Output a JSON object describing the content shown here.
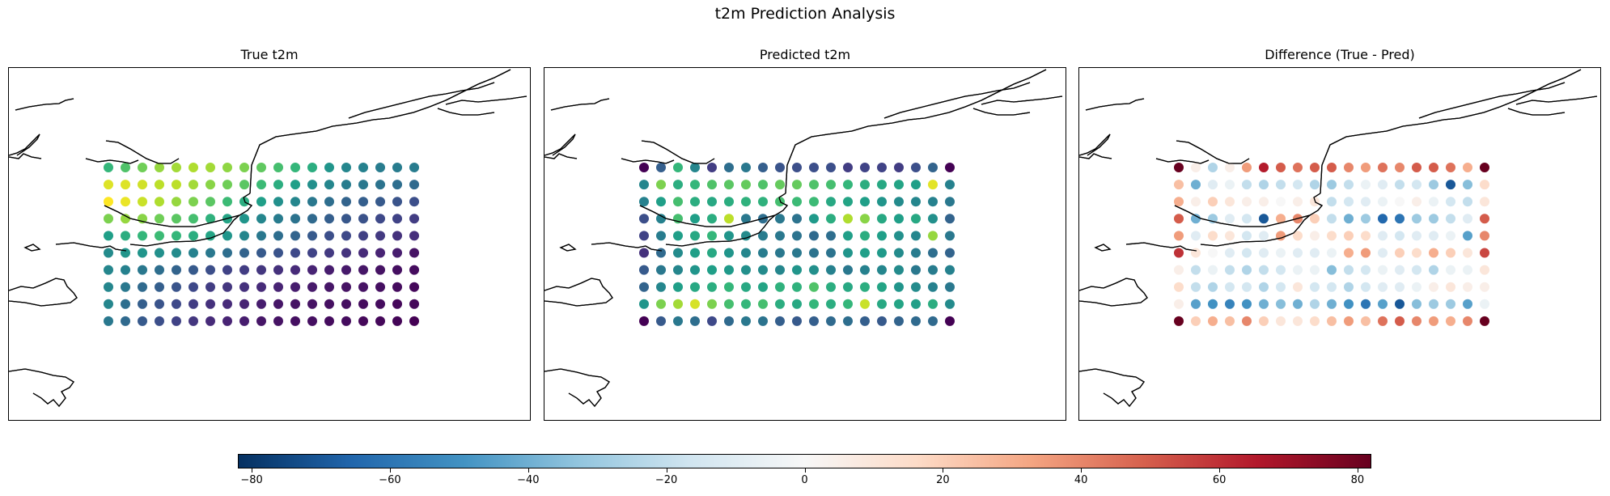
{
  "figure": {
    "suptitle": "t2m Prediction Analysis"
  },
  "chart_data": [
    {
      "type": "scatter",
      "title": "True t2m",
      "colormap": "viridis",
      "grid_columns": 19,
      "grid_rows": 10,
      "values": [
        [
          0.66,
          0.72,
          0.78,
          0.84,
          0.86,
          0.88,
          0.86,
          0.83,
          0.8,
          0.75,
          0.7,
          0.66,
          0.62,
          0.52,
          0.46,
          0.44,
          0.42,
          0.42,
          0.42
        ],
        [
          0.95,
          0.95,
          0.93,
          0.9,
          0.9,
          0.86,
          0.82,
          0.78,
          0.74,
          0.68,
          0.62,
          0.56,
          0.5,
          0.46,
          0.42,
          0.4,
          0.38,
          0.36,
          0.34
        ],
        [
          1.0,
          0.97,
          0.92,
          0.88,
          0.84,
          0.8,
          0.74,
          0.68,
          0.62,
          0.56,
          0.5,
          0.46,
          0.4,
          0.36,
          0.32,
          0.3,
          0.28,
          0.26,
          0.24
        ],
        [
          0.8,
          0.84,
          0.82,
          0.78,
          0.74,
          0.7,
          0.64,
          0.58,
          0.52,
          0.46,
          0.42,
          0.38,
          0.34,
          0.3,
          0.27,
          0.25,
          0.22,
          0.2,
          0.18
        ],
        [
          0.56,
          0.62,
          0.66,
          0.68,
          0.66,
          0.62,
          0.58,
          0.52,
          0.46,
          0.4,
          0.36,
          0.32,
          0.28,
          0.24,
          0.22,
          0.19,
          0.17,
          0.14,
          0.13
        ],
        [
          0.48,
          0.52,
          0.52,
          0.5,
          0.48,
          0.44,
          0.4,
          0.36,
          0.32,
          0.28,
          0.26,
          0.22,
          0.2,
          0.17,
          0.15,
          0.12,
          0.1,
          0.08,
          0.05
        ],
        [
          0.46,
          0.44,
          0.4,
          0.36,
          0.32,
          0.28,
          0.24,
          0.2,
          0.18,
          0.16,
          0.14,
          0.12,
          0.1,
          0.08,
          0.07,
          0.06,
          0.05,
          0.04,
          0.03
        ],
        [
          0.46,
          0.4,
          0.34,
          0.3,
          0.26,
          0.22,
          0.18,
          0.16,
          0.14,
          0.12,
          0.1,
          0.08,
          0.07,
          0.06,
          0.05,
          0.05,
          0.04,
          0.03,
          0.02
        ],
        [
          0.46,
          0.36,
          0.3,
          0.26,
          0.22,
          0.18,
          0.14,
          0.12,
          0.1,
          0.08,
          0.06,
          0.05,
          0.05,
          0.04,
          0.04,
          0.03,
          0.03,
          0.02,
          0.02
        ],
        [
          0.4,
          0.34,
          0.28,
          0.24,
          0.2,
          0.16,
          0.12,
          0.1,
          0.08,
          0.06,
          0.05,
          0.04,
          0.04,
          0.03,
          0.03,
          0.02,
          0.02,
          0.01,
          0.0
        ]
      ]
    },
    {
      "type": "scatter",
      "title": "Predicted t2m",
      "colormap": "viridis",
      "grid_columns": 19,
      "grid_rows": 10,
      "values": [
        [
          0.0,
          0.3,
          0.66,
          0.46,
          0.18,
          0.36,
          0.4,
          0.3,
          0.26,
          0.24,
          0.24,
          0.24,
          0.18,
          0.2,
          0.2,
          0.18,
          0.24,
          0.32,
          0.0
        ],
        [
          0.46,
          0.8,
          0.62,
          0.66,
          0.72,
          0.74,
          0.76,
          0.72,
          0.76,
          0.76,
          0.72,
          0.7,
          0.66,
          0.62,
          0.6,
          0.58,
          0.56,
          0.96,
          0.44
        ],
        [
          0.44,
          0.56,
          0.7,
          0.62,
          0.6,
          0.62,
          0.64,
          0.64,
          0.7,
          0.68,
          0.68,
          0.6,
          0.58,
          0.56,
          0.52,
          0.48,
          0.46,
          0.44,
          0.4
        ],
        [
          0.24,
          0.44,
          0.7,
          0.56,
          0.62,
          0.9,
          0.4,
          0.36,
          0.4,
          0.38,
          0.54,
          0.62,
          0.88,
          0.82,
          0.6,
          0.56,
          0.6,
          0.5,
          0.32
        ],
        [
          0.2,
          0.42,
          0.56,
          0.6,
          0.66,
          0.52,
          0.48,
          0.42,
          0.4,
          0.38,
          0.34,
          0.36,
          0.56,
          0.62,
          0.56,
          0.5,
          0.46,
          0.84,
          0.4
        ],
        [
          0.14,
          0.34,
          0.48,
          0.56,
          0.6,
          0.52,
          0.46,
          0.42,
          0.4,
          0.4,
          0.38,
          0.38,
          0.52,
          0.56,
          0.54,
          0.48,
          0.42,
          0.36,
          0.32
        ],
        [
          0.28,
          0.4,
          0.46,
          0.52,
          0.56,
          0.54,
          0.5,
          0.48,
          0.46,
          0.52,
          0.5,
          0.44,
          0.4,
          0.44,
          0.46,
          0.48,
          0.4,
          0.42,
          0.44
        ],
        [
          0.32,
          0.46,
          0.56,
          0.6,
          0.62,
          0.66,
          0.6,
          0.58,
          0.64,
          0.64,
          0.72,
          0.62,
          0.6,
          0.62,
          0.58,
          0.52,
          0.48,
          0.44,
          0.4
        ],
        [
          0.52,
          0.8,
          0.86,
          0.94,
          0.8,
          0.7,
          0.66,
          0.7,
          0.62,
          0.6,
          0.66,
          0.62,
          0.66,
          0.92,
          0.6,
          0.58,
          0.56,
          0.62,
          0.48
        ],
        [
          0.0,
          0.28,
          0.4,
          0.36,
          0.22,
          0.34,
          0.4,
          0.38,
          0.3,
          0.28,
          0.3,
          0.34,
          0.36,
          0.3,
          0.28,
          0.32,
          0.34,
          0.34,
          0.0
        ]
      ]
    },
    {
      "type": "scatter",
      "title": "Difference (True - Pred)",
      "colormap": "RdBu_r",
      "vmin": -82,
      "vmax": 82,
      "colorbar_ticks": [
        "−80",
        "−60",
        "−40",
        "−20",
        "0",
        "20",
        "40",
        "60",
        "80"
      ],
      "grid_columns": 19,
      "grid_rows": 10,
      "values": [
        [
          82,
          5,
          -25,
          5,
          35,
          65,
          50,
          45,
          50,
          50,
          40,
          35,
          45,
          40,
          50,
          50,
          45,
          30,
          82
        ],
        [
          25,
          -40,
          -10,
          -5,
          -20,
          -25,
          -20,
          -15,
          -25,
          -30,
          -20,
          -5,
          -10,
          -20,
          -15,
          -30,
          -70,
          -35,
          15
        ],
        [
          30,
          5,
          20,
          10,
          5,
          5,
          0,
          5,
          10,
          -20,
          -15,
          -10,
          -5,
          0,
          5,
          -5,
          -15,
          -20,
          10
        ],
        [
          50,
          -40,
          -30,
          -10,
          -15,
          -70,
          30,
          40,
          20,
          -20,
          -40,
          -30,
          -65,
          -60,
          -30,
          -30,
          -20,
          -10,
          50
        ],
        [
          35,
          -10,
          15,
          10,
          -15,
          -10,
          35,
          15,
          5,
          15,
          20,
          15,
          -10,
          -15,
          -10,
          -10,
          -5,
          -45,
          40
        ],
        [
          60,
          10,
          0,
          -10,
          -15,
          -10,
          -5,
          -10,
          -10,
          -5,
          30,
          35,
          -10,
          20,
          15,
          30,
          20,
          10,
          55
        ],
        [
          5,
          -20,
          -5,
          -20,
          -25,
          -20,
          -15,
          -5,
          -5,
          -35,
          -20,
          -15,
          -5,
          -10,
          -15,
          -25,
          -5,
          -5,
          10
        ],
        [
          15,
          -20,
          -25,
          -15,
          -15,
          -25,
          -15,
          10,
          -15,
          -15,
          -25,
          -15,
          -10,
          -10,
          -5,
          5,
          10,
          5,
          5
        ],
        [
          5,
          -45,
          -50,
          -55,
          -50,
          -40,
          -35,
          -40,
          -25,
          -40,
          -50,
          -60,
          -45,
          -70,
          -35,
          -30,
          -30,
          -45,
          -5
        ],
        [
          82,
          20,
          30,
          25,
          40,
          20,
          10,
          10,
          15,
          25,
          35,
          25,
          45,
          50,
          40,
          35,
          30,
          40,
          82
        ]
      ]
    }
  ]
}
